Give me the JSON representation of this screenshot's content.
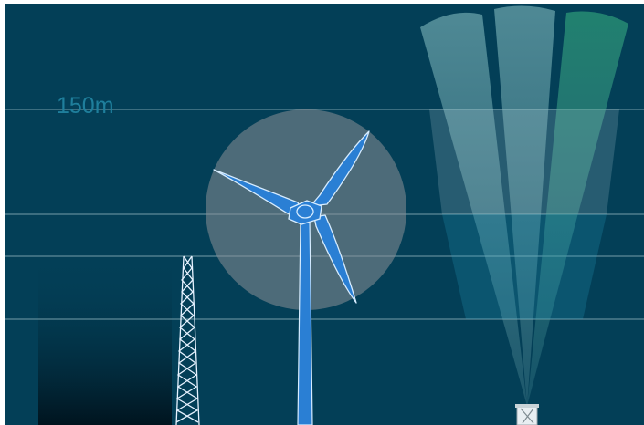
{
  "diagram": {
    "height_label": "150m",
    "colors": {
      "background": "#033f57",
      "guide_line": "#5f8a99",
      "rotor_disc": "#8a8f96",
      "turbine_fill": "#2a7fd4",
      "turbine_outline": "#d6ecff",
      "lidar_beam": "#5aa0a8",
      "lidar_beam_highlight": "#1f8e6a",
      "lidar_band": "#cfe3ea",
      "mast": "#e6f2ff"
    }
  }
}
